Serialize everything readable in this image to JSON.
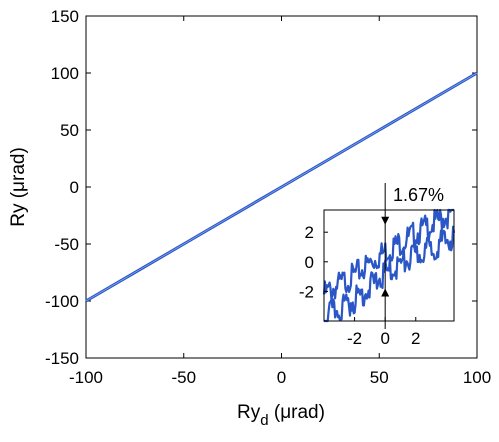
{
  "chart_data": [
    {
      "type": "line",
      "xlabel": {
        "main": "Ry",
        "sub": "d",
        "unit": " (μrad)"
      },
      "ylabel": "Ry (μrad)",
      "xlim": [
        -100,
        100
      ],
      "ylim": [
        -150,
        150
      ],
      "xticks": [
        -100,
        -50,
        0,
        50,
        100
      ],
      "xtick_labels": [
        "-100",
        "-50",
        "0",
        "50",
        "100"
      ],
      "yticks": [
        -150,
        -100,
        -50,
        0,
        50,
        100,
        150
      ],
      "ytick_labels": [
        "-150",
        "-100",
        "-50",
        "0",
        "50",
        "100",
        "150"
      ],
      "grid": false,
      "series": [
        {
          "x": [
            -100,
            -50,
            0,
            50,
            100
          ],
          "y": [
            -100,
            -50,
            0,
            50,
            100
          ]
        }
      ],
      "line_color": "#2a56c6"
    },
    {
      "type": "line",
      "role": "inset",
      "annotation": "1.67%",
      "xlim": [
        -4,
        4.5
      ],
      "ylim": [
        -4,
        3.5
      ],
      "xticks": [
        -2,
        0,
        2
      ],
      "xtick_labels": [
        "-2",
        "0",
        "2"
      ],
      "yticks": [
        -2,
        0,
        2
      ],
      "ytick_labels": [
        "-2",
        "0",
        "2"
      ],
      "series": [
        {
          "x": [
            -4,
            -2,
            0,
            2,
            4.5
          ],
          "y": [
            -2.2,
            -0.9,
            0.7,
            1.9,
            3.4
          ]
        },
        {
          "x": [
            -4,
            -2,
            0,
            2,
            4.5
          ],
          "y": [
            -3.7,
            -2.6,
            -0.8,
            0.4,
            1.7
          ]
        }
      ],
      "arrow_x": 0,
      "arrow_top_y": 2.5,
      "arrow_bottom_y": -1.8,
      "line_color": "#2a56c6"
    }
  ]
}
